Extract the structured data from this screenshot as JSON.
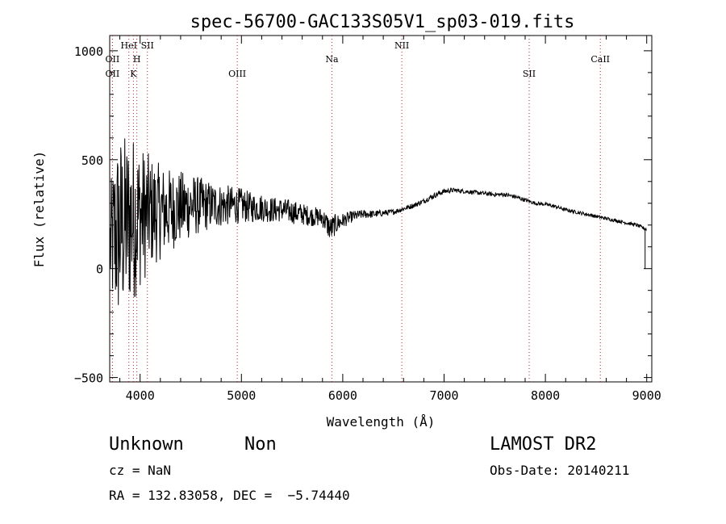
{
  "chart_data": {
    "type": "line",
    "title": "spec-56700-GAC133S05V1_sp03-019.fits",
    "xlabel": "Wavelength (Å)",
    "ylabel": "Flux (relative)",
    "xlim": [
      3700,
      9050
    ],
    "ylim": [
      -520,
      1070
    ],
    "xticks": [
      4000,
      5000,
      6000,
      7000,
      8000,
      9000
    ],
    "yticks": [
      -500,
      0,
      500,
      1000
    ],
    "x_tick_labels": [
      "4000",
      "5000",
      "6000",
      "7000",
      "8000",
      "9000"
    ],
    "y_tick_labels": [
      "−500",
      "0",
      "500",
      "1000"
    ],
    "grid": false,
    "series": [
      {
        "x": [
          3700,
          3750,
          3800,
          3850,
          3900,
          3950,
          4000,
          4050,
          4100,
          4150,
          4200,
          4300,
          4400,
          4500,
          4600,
          4700,
          4800,
          4900,
          5000,
          5100,
          5200,
          5300,
          5400,
          5500,
          5600,
          5700,
          5800,
          5880,
          5920,
          6000,
          6100,
          6200,
          6300,
          6400,
          6500,
          6600,
          6700,
          6800,
          6900,
          7000,
          7100,
          7200,
          7300,
          7400,
          7500,
          7600,
          7700,
          7800,
          7900,
          8000,
          8100,
          8200,
          8300,
          8400,
          8500,
          8600,
          8700,
          8800,
          8900,
          9000
        ],
        "y": [
          100,
          150,
          180,
          200,
          220,
          240,
          240,
          250,
          260,
          260,
          260,
          270,
          280,
          290,
          290,
          290,
          290,
          290,
          290,
          280,
          280,
          270,
          270,
          260,
          250,
          240,
          235,
          180,
          200,
          220,
          240,
          250,
          250,
          255,
          260,
          275,
          290,
          310,
          335,
          355,
          360,
          355,
          350,
          345,
          340,
          340,
          330,
          315,
          300,
          295,
          285,
          270,
          260,
          250,
          240,
          230,
          220,
          210,
          200,
          180
        ],
        "noise": [
          250,
          400,
          450,
          420,
          400,
          380,
          330,
          300,
          260,
          240,
          220,
          190,
          170,
          150,
          130,
          110,
          100,
          90,
          80,
          70,
          65,
          60,
          55,
          55,
          50,
          45,
          45,
          60,
          50,
          35,
          25,
          20,
          18,
          15,
          12,
          12,
          12,
          12,
          12,
          12,
          10,
          10,
          10,
          10,
          10,
          10,
          10,
          10,
          8,
          8,
          8,
          8,
          8,
          8,
          8,
          8,
          8,
          8,
          8,
          8
        ]
      }
    ],
    "lines": [
      {
        "name": "OII",
        "x": 3727,
        "row": 1
      },
      {
        "name": "OII",
        "x": 3727,
        "row": 2
      },
      {
        "name": "HeI",
        "x": 3889,
        "row": 0
      },
      {
        "name": "H",
        "x": 3968,
        "row": 1
      },
      {
        "name": "K",
        "x": 3934,
        "row": 2
      },
      {
        "name": "SII",
        "x": 4072,
        "row": 0
      },
      {
        "name": "OIII",
        "x": 4959,
        "row": 2
      },
      {
        "name": "Na",
        "x": 5893,
        "row": 1
      },
      {
        "name": "NII",
        "x": 6583,
        "row": 0
      },
      {
        "name": "SII",
        "x": 7840,
        "row": 2
      },
      {
        "name": "CaII",
        "x": 8542,
        "row": 1
      }
    ]
  },
  "info": {
    "object_class": "Unknown",
    "subclass": "Non",
    "cz": "cz = NaN",
    "survey": "LAMOST DR2",
    "obs_date": "Obs-Date: 20140211",
    "radec": "RA = 132.83058, DEC =  −5.74440"
  }
}
